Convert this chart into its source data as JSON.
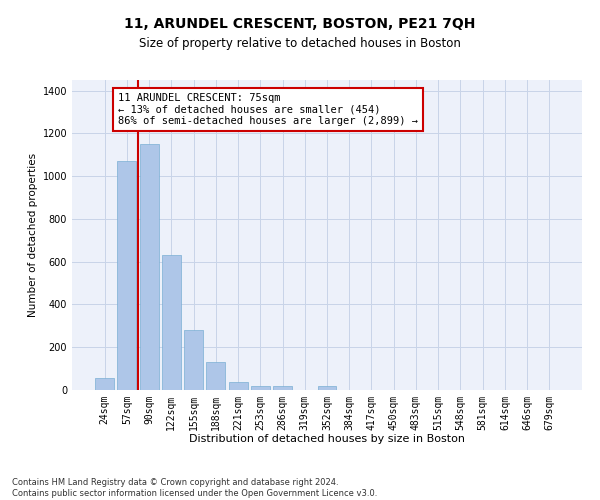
{
  "title": "11, ARUNDEL CRESCENT, BOSTON, PE21 7QH",
  "subtitle": "Size of property relative to detached houses in Boston",
  "xlabel": "Distribution of detached houses by size in Boston",
  "ylabel": "Number of detached properties",
  "categories": [
    "24sqm",
    "57sqm",
    "90sqm",
    "122sqm",
    "155sqm",
    "188sqm",
    "221sqm",
    "253sqm",
    "286sqm",
    "319sqm",
    "352sqm",
    "384sqm",
    "417sqm",
    "450sqm",
    "483sqm",
    "515sqm",
    "548sqm",
    "581sqm",
    "614sqm",
    "646sqm",
    "679sqm"
  ],
  "values": [
    57,
    1070,
    1150,
    630,
    280,
    130,
    38,
    20,
    17,
    0,
    20,
    0,
    0,
    0,
    0,
    0,
    0,
    0,
    0,
    0,
    0
  ],
  "bar_color": "#aec6e8",
  "bar_edge_color": "#7aafd4",
  "bar_width": 0.85,
  "vline_x": 1.5,
  "vline_color": "#cc0000",
  "annotation_text": "11 ARUNDEL CRESCENT: 75sqm\n← 13% of detached houses are smaller (454)\n86% of semi-detached houses are larger (2,899) →",
  "annotation_box_color": "#ffffff",
  "annotation_box_edge": "#cc0000",
  "ylim": [
    0,
    1450
  ],
  "yticks": [
    0,
    200,
    400,
    600,
    800,
    1000,
    1200,
    1400
  ],
  "grid_color": "#c8d4e8",
  "background_color": "#edf1fa",
  "footnote": "Contains HM Land Registry data © Crown copyright and database right 2024.\nContains public sector information licensed under the Open Government Licence v3.0.",
  "title_fontsize": 10,
  "subtitle_fontsize": 8.5,
  "xlabel_fontsize": 8,
  "ylabel_fontsize": 7.5,
  "tick_fontsize": 7,
  "annotation_fontsize": 7.5,
  "footnote_fontsize": 6
}
